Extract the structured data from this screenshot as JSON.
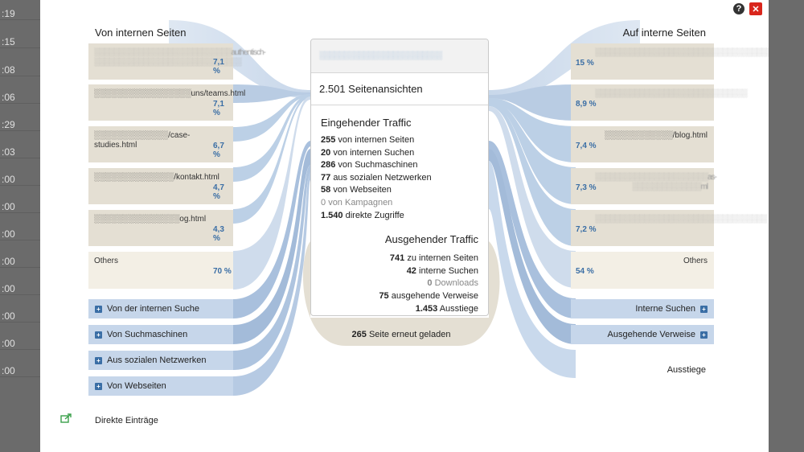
{
  "background_times": [
    ":19",
    ":15",
    ":08",
    ":06",
    ":29",
    ":03",
    ":00",
    ":00",
    ":00",
    ":00",
    ":00",
    ":00",
    ":00",
    ":00"
  ],
  "left": {
    "title": "Von internen Seiten",
    "entries": [
      {
        "label": "░░░░░░░░░░░░░░░░░░░░░░░░░░░░authentisch-░░░░░░░░░░░░░░░░░░░░░░░░░░░░░░",
        "pct": "7,1 %"
      },
      {
        "label": "░░░░░░░░░░░░░░░░░uns/teams.html",
        "pct": "7,1 %"
      },
      {
        "label": "░░░░░░░░░░░░░/case-studies.html",
        "pct": "6,7 %"
      },
      {
        "label": "░░░░░░░░░░░░░░/kontakt.html",
        "pct": "4,7 %"
      },
      {
        "label": "░░░░░░░░░░░░░░░og.html",
        "pct": "4,3 %"
      },
      {
        "label": "Others",
        "pct": "70 %"
      }
    ],
    "expandables": [
      "Von der internen Suche",
      "Von Suchmaschinen",
      "Aus sozialen Netzwerken",
      "Von Webseiten"
    ],
    "direct": "Direkte Einträge"
  },
  "center": {
    "url": "░░░░░░░░░░░░░░░░░░░░░░░░░",
    "views": "2.501 Seitenansichten",
    "incoming_title": "Eingehender Traffic",
    "incoming": [
      {
        "num": "255",
        "text": "von internen Seiten"
      },
      {
        "num": "20",
        "text": "von internen Suchen"
      },
      {
        "num": "286",
        "text": "von Suchmaschinen"
      },
      {
        "num": "77",
        "text": "aus sozialen Netzwerken"
      },
      {
        "num": "58",
        "text": "von Webseiten"
      },
      {
        "num": "0",
        "text": "von Kampagnen"
      },
      {
        "num": "1.540",
        "text": "direkte Zugriffe"
      }
    ],
    "outgoing_title": "Ausgehender Traffic",
    "outgoing": [
      {
        "num": "741",
        "text": "zu internen Seiten"
      },
      {
        "num": "42",
        "text": "interne Suchen"
      },
      {
        "num": "0",
        "text": "Downloads"
      },
      {
        "num": "75",
        "text": "ausgehende Verweise"
      },
      {
        "num": "1.453",
        "text": "Ausstiege"
      }
    ],
    "reload_num": "265",
    "reload_text": "Seite erneut geladen"
  },
  "right": {
    "title": "Auf interne Seiten",
    "entries": [
      {
        "label": "░░░░░░░░░░░░░░░░░░░░░░░░░░░░░░░░░░░░░░",
        "pct": "15 %"
      },
      {
        "label": "░░░░░░░░░░░░░░░░░░░░░░░░░░░░░░░",
        "pct": "8,9 %"
      },
      {
        "label": "░░░░░░░░░░░░/blog.html",
        "pct": "7,4 %"
      },
      {
        "label": "░░░░░░░░░░░░░░░░░░░░░░░as-░░░░░░░░░░░░░░ml",
        "pct": "7,3 %"
      },
      {
        "label": "░░░░░░░░░░░░░░░░░░░░░░░░░░░░░░░░░░░",
        "pct": "7,2 %"
      },
      {
        "label": "Others",
        "pct": "54 %"
      }
    ],
    "expandables": [
      "Interne Suchen",
      "Ausgehende Verweise"
    ],
    "exits": "Ausstiege"
  },
  "icons": {
    "help": "?",
    "close": "✕",
    "plus": "+"
  }
}
